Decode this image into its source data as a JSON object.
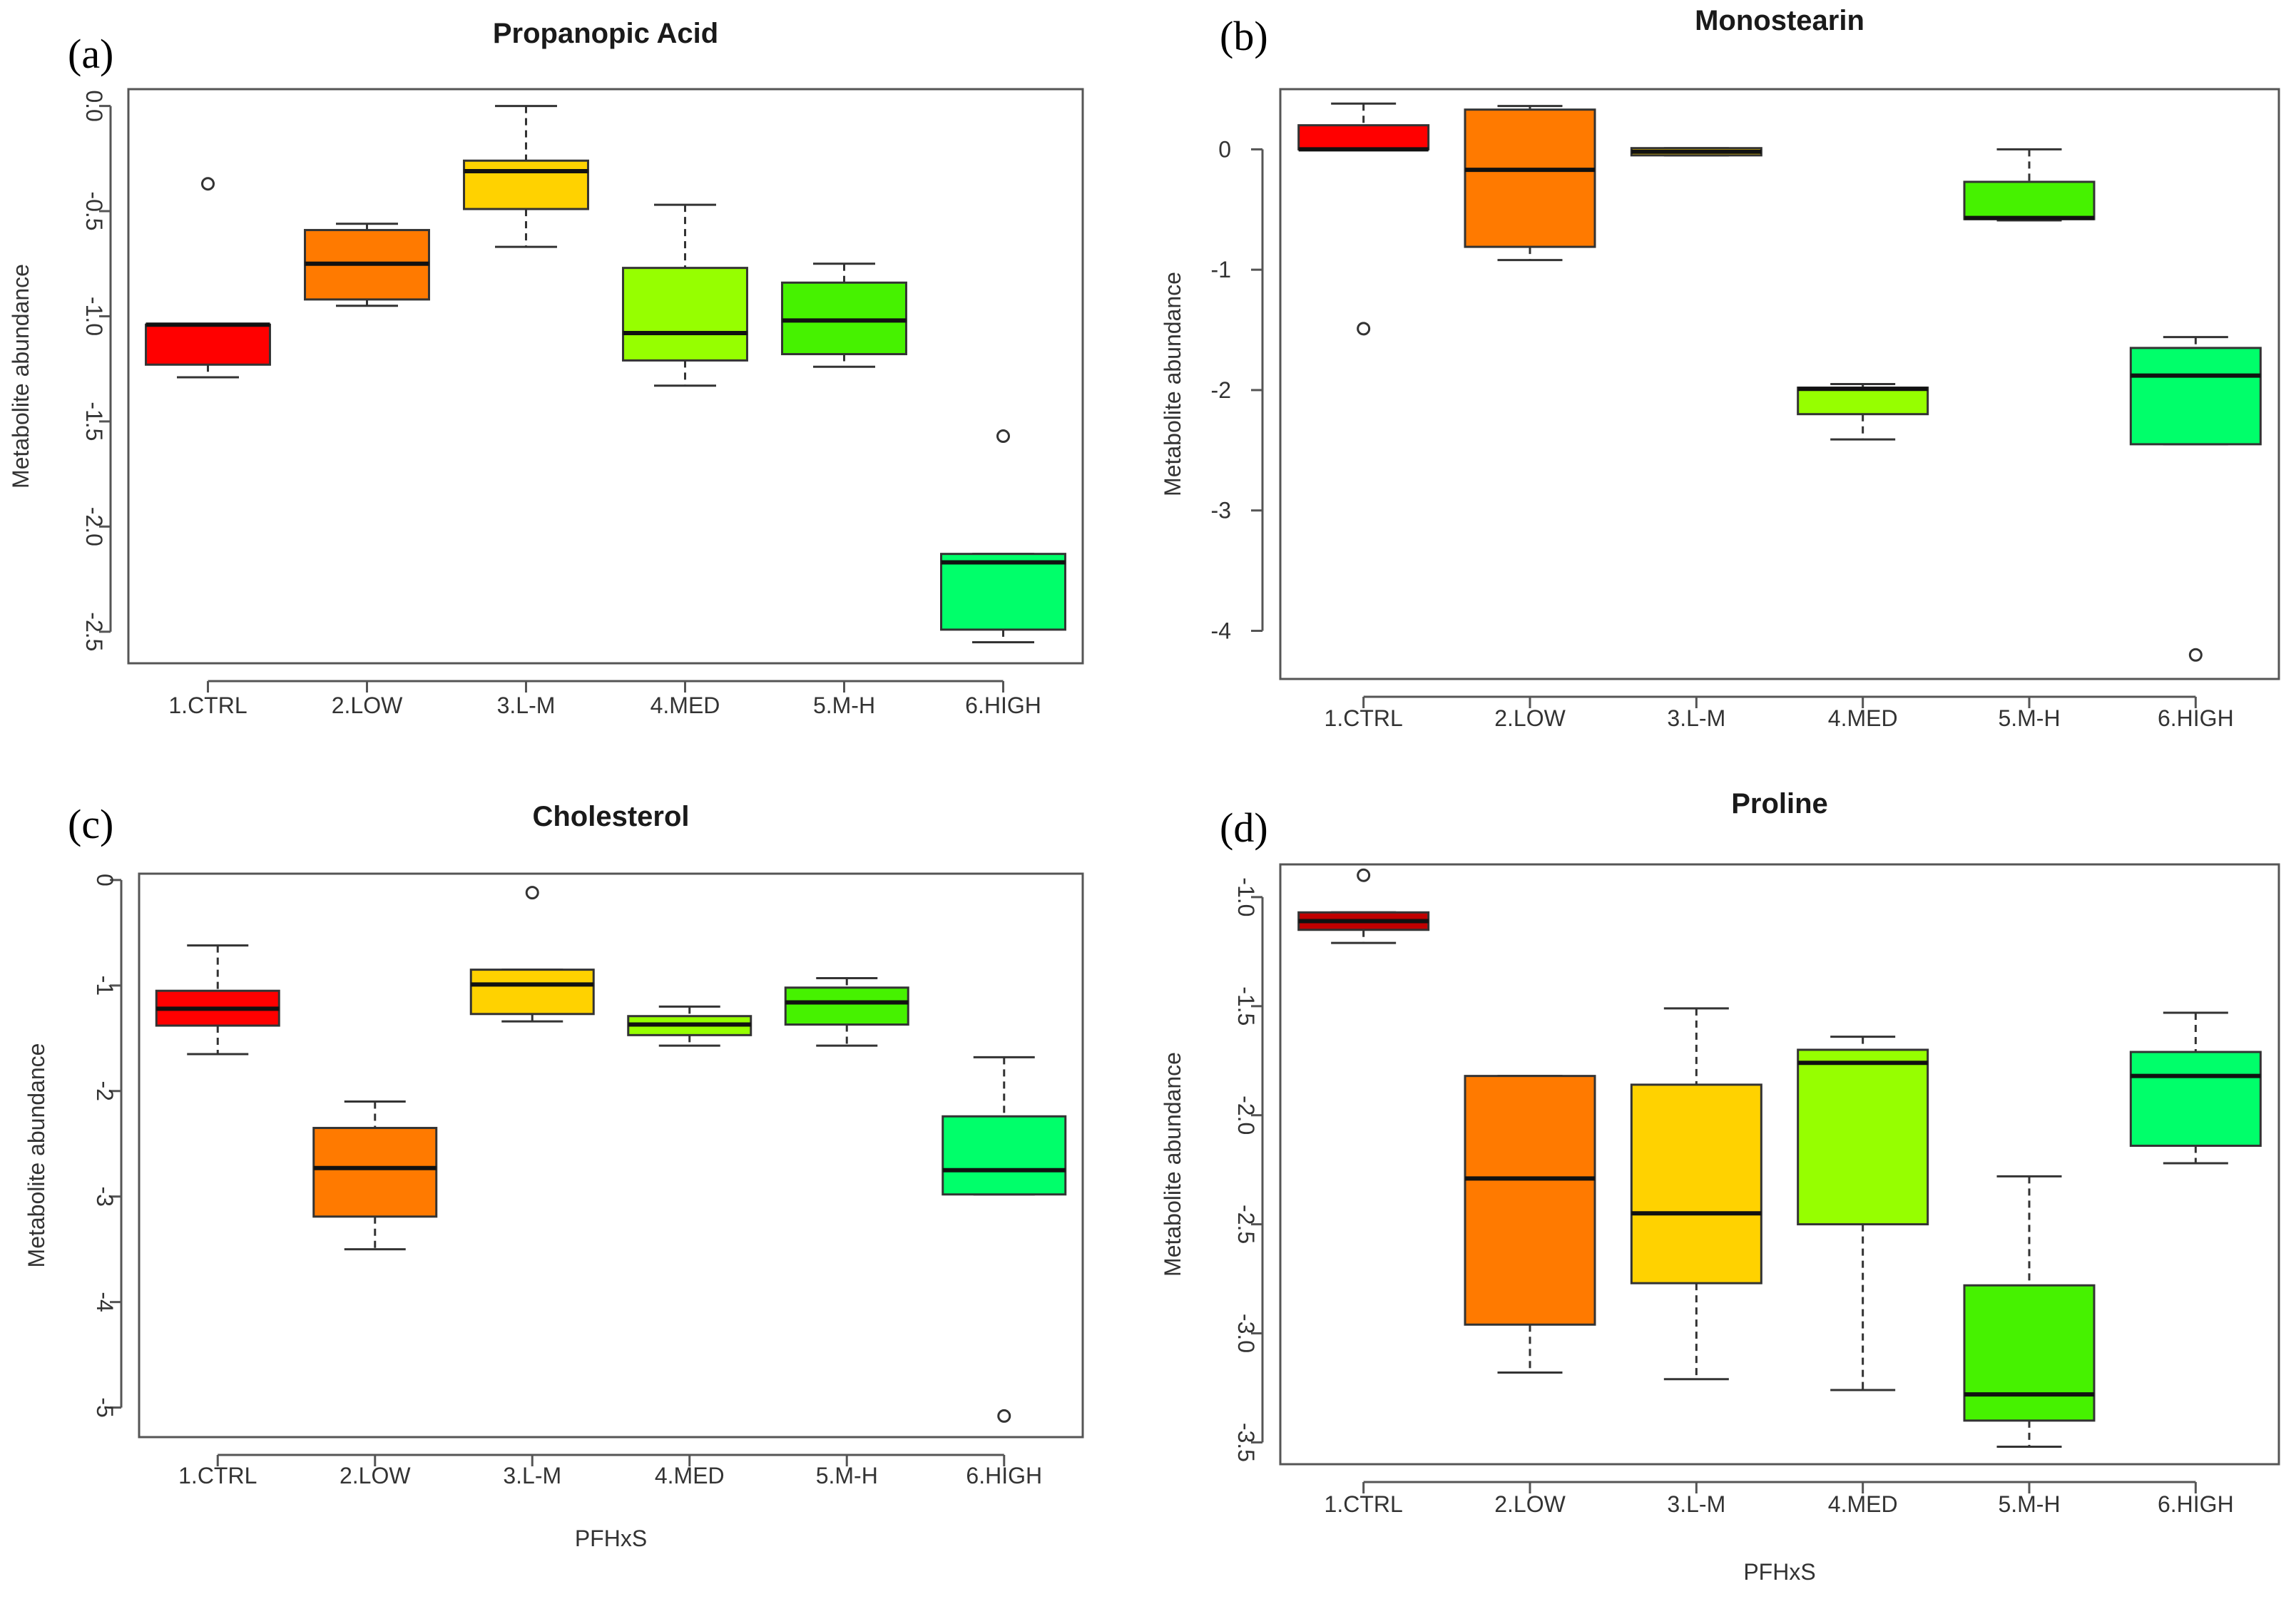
{
  "chart_data": [
    {
      "type": "box",
      "panel": "(a)",
      "title": "Propanopic Acid",
      "ylabel": "Metabolite abundance",
      "xlabel": "",
      "categories": [
        "1.CTRL",
        "2.LOW",
        "3.L-M",
        "4.MED",
        "5.M-H",
        "6.HIGH"
      ],
      "colors": [
        "#ff0000",
        "#ff7a00",
        "#ffd200",
        "#96ff00",
        "#46f200",
        "#00ff6a"
      ],
      "ylim": [
        -2.65,
        0.08
      ],
      "yticks": [
        0.0,
        -0.5,
        -1.0,
        -1.5,
        -2.0,
        -2.5
      ],
      "ytick_labels": [
        "0.0",
        "-0.5",
        "-1.0",
        "-1.5",
        "-2.0",
        "-2.5"
      ],
      "ytick_rotate": true,
      "boxes": [
        {
          "min": -1.29,
          "q1": -1.23,
          "median": -1.04,
          "q3": -1.04,
          "max": -1.04,
          "outliers": [
            -0.37
          ]
        },
        {
          "min": -0.95,
          "q1": -0.92,
          "median": -0.75,
          "q3": -0.59,
          "max": -0.56,
          "outliers": []
        },
        {
          "min": -0.67,
          "q1": -0.49,
          "median": -0.31,
          "q3": -0.26,
          "max": 0.0,
          "outliers": []
        },
        {
          "min": -1.33,
          "q1": -1.21,
          "median": -1.08,
          "q3": -0.77,
          "max": -0.47,
          "outliers": []
        },
        {
          "min": -1.24,
          "q1": -1.18,
          "median": -1.02,
          "q3": -0.84,
          "max": -0.75,
          "outliers": []
        },
        {
          "min": -2.55,
          "q1": -2.49,
          "median": -2.17,
          "q3": -2.13,
          "max": -2.13,
          "outliers": [
            -1.57
          ]
        }
      ]
    },
    {
      "type": "box",
      "panel": "(b)",
      "title": "Monostearin",
      "ylabel": "Metabolite abundance",
      "xlabel": "",
      "categories": [
        "1.CTRL",
        "2.LOW",
        "3.L-M",
        "4.MED",
        "5.M-H",
        "6.HIGH"
      ],
      "colors": [
        "#ff0000",
        "#ff7a00",
        "#ffd200",
        "#96ff00",
        "#46f200",
        "#00ff6a"
      ],
      "ylim": [
        -4.4,
        0.5
      ],
      "yticks": [
        0,
        -1,
        -2,
        -3,
        -4
      ],
      "ytick_labels": [
        "0",
        "-1",
        "-2",
        "-3",
        "-4"
      ],
      "ytick_rotate": false,
      "boxes": [
        {
          "min": 0.0,
          "q1": 0.0,
          "median": 0.0,
          "q3": 0.2,
          "max": 0.38,
          "outliers": [
            -1.49
          ]
        },
        {
          "min": -0.92,
          "q1": -0.81,
          "median": -0.17,
          "q3": 0.33,
          "max": 0.36,
          "outliers": []
        },
        {
          "min": -0.05,
          "q1": -0.05,
          "median": -0.02,
          "q3": 0.01,
          "max": 0.01,
          "outliers": []
        },
        {
          "min": -2.41,
          "q1": -2.2,
          "median": -1.99,
          "q3": -1.98,
          "max": -1.95,
          "outliers": []
        },
        {
          "min": -0.59,
          "q1": -0.58,
          "median": -0.57,
          "q3": -0.27,
          "max": 0.0,
          "outliers": []
        },
        {
          "min": -2.45,
          "q1": -2.45,
          "median": -1.88,
          "q3": -1.65,
          "max": -1.56,
          "outliers": [
            -4.2
          ]
        }
      ]
    },
    {
      "type": "box",
      "panel": "(c)",
      "title": "Cholesterol",
      "ylabel": "Metabolite abundance",
      "xlabel": "PFHxS",
      "categories": [
        "1.CTRL",
        "2.LOW",
        "3.L-M",
        "4.MED",
        "5.M-H",
        "6.HIGH"
      ],
      "colors": [
        "#ff0000",
        "#ff7a00",
        "#ffd200",
        "#96ff00",
        "#46f200",
        "#00ff6a"
      ],
      "ylim": [
        -5.28,
        0.06
      ],
      "yticks": [
        0,
        -1,
        -2,
        -3,
        -4,
        -5
      ],
      "ytick_labels": [
        "0",
        "-1",
        "-2",
        "-3",
        "-4",
        "-5"
      ],
      "ytick_rotate": true,
      "boxes": [
        {
          "min": -1.65,
          "q1": -1.38,
          "median": -1.22,
          "q3": -1.05,
          "max": -0.62,
          "outliers": []
        },
        {
          "min": -3.5,
          "q1": -3.19,
          "median": -2.73,
          "q3": -2.35,
          "max": -2.1,
          "outliers": []
        },
        {
          "min": -1.34,
          "q1": -1.27,
          "median": -0.99,
          "q3": -0.85,
          "max": -0.85,
          "outliers": [
            -0.12
          ]
        },
        {
          "min": -1.57,
          "q1": -1.47,
          "median": -1.37,
          "q3": -1.29,
          "max": -1.2,
          "outliers": []
        },
        {
          "min": -1.57,
          "q1": -1.37,
          "median": -1.16,
          "q3": -1.02,
          "max": -0.93,
          "outliers": []
        },
        {
          "min": -2.98,
          "q1": -2.98,
          "median": -2.75,
          "q3": -2.24,
          "max": -1.68,
          "outliers": [
            -5.08
          ]
        }
      ]
    },
    {
      "type": "box",
      "panel": "(d)",
      "title": "Proline",
      "ylabel": "Metabolite abundance",
      "xlabel": "PFHxS",
      "categories": [
        "1.CTRL",
        "2.LOW",
        "3.L-M",
        "4.MED",
        "5.M-H",
        "6.HIGH"
      ],
      "colors": [
        "#c00000",
        "#ff7a00",
        "#ffd200",
        "#96ff00",
        "#46f200",
        "#00ff6a"
      ],
      "ylim": [
        -3.6,
        -0.85
      ],
      "yticks": [
        -1.0,
        -1.5,
        -2.0,
        -2.5,
        -3.0,
        -3.5
      ],
      "ytick_labels": [
        "-1.0",
        "-1.5",
        "-2.0",
        "-2.5",
        "-3.0",
        "-3.5"
      ],
      "ytick_rotate": true,
      "boxes": [
        {
          "min": -1.21,
          "q1": -1.15,
          "median": -1.11,
          "q3": -1.07,
          "max": -1.07,
          "outliers": [
            -0.9
          ]
        },
        {
          "min": -3.18,
          "q1": -2.96,
          "median": -2.29,
          "q3": -1.82,
          "max": -1.82,
          "outliers": []
        },
        {
          "min": -3.21,
          "q1": -2.77,
          "median": -2.45,
          "q3": -1.86,
          "max": -1.51,
          "outliers": []
        },
        {
          "min": -3.26,
          "q1": -2.5,
          "median": -1.76,
          "q3": -1.7,
          "max": -1.64,
          "outliers": []
        },
        {
          "min": -3.52,
          "q1": -3.4,
          "median": -3.28,
          "q3": -2.78,
          "max": -2.28,
          "outliers": []
        },
        {
          "min": -2.22,
          "q1": -2.14,
          "median": -1.82,
          "q3": -1.71,
          "max": -1.53,
          "outliers": []
        }
      ]
    }
  ]
}
